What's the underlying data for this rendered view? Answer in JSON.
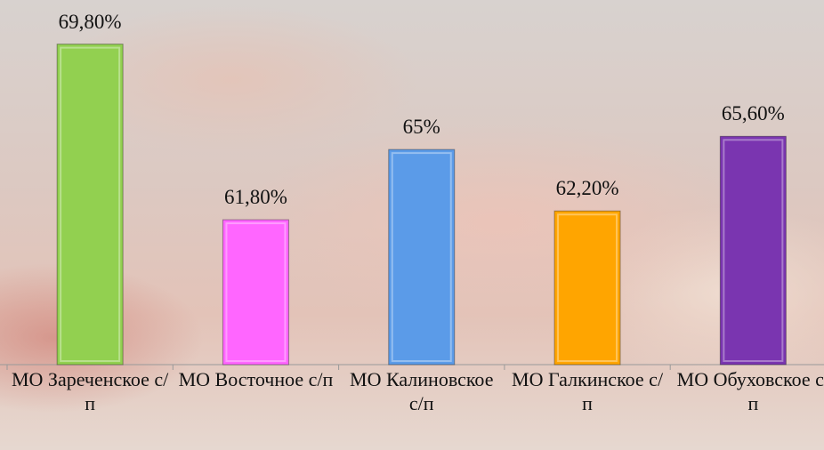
{
  "chart_data": {
    "type": "bar",
    "categories": [
      "МО Зареченское с/п",
      "МО Восточное с/п",
      "МО Калиновское с/п",
      "МО Галкинское с/п",
      "МО Обуховское с/п"
    ],
    "values": [
      69.8,
      61.8,
      65,
      62.2,
      65.6
    ],
    "value_labels": [
      "69,80%",
      "61,80%",
      "65%",
      "62,20%",
      "65,60%"
    ],
    "colors": [
      "#92d050",
      "#ff66ff",
      "#5b9be8",
      "#ffa500",
      "#7a35b0"
    ],
    "ylim": [
      55.2,
      71
    ]
  }
}
